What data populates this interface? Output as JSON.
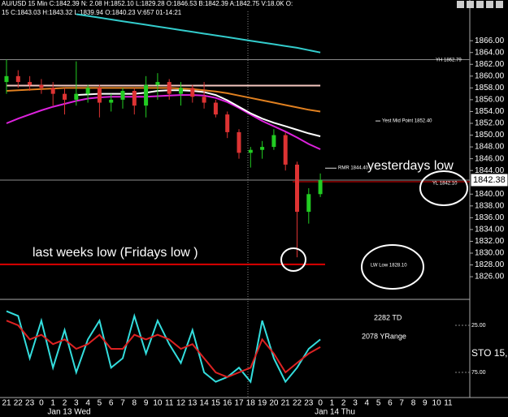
{
  "chart_data": [
    {
      "type": "candlestick",
      "title": "AU/USD 15 Min C:1842.39 N: 2.08 H:1852.10 L:1829.28 O:1846.53 B:1842.39 A:1842.75 V:18.0K O:",
      "subtitle": "15 C:1843.03 H:1843.32 L:1839.94 O:1840.23 V:657 01-14:21",
      "categories": [
        "21",
        "22",
        "23",
        "0",
        "1",
        "2",
        "3",
        "4",
        "5",
        "6",
        "7",
        "8",
        "9",
        "10",
        "11",
        "12",
        "13",
        "14",
        "15",
        "16",
        "17",
        "18",
        "19",
        "20",
        "21",
        "22",
        "23",
        "0",
        "1",
        "2",
        "3",
        "4",
        "5",
        "6",
        "7",
        "8",
        "9",
        "10",
        "11"
      ],
      "date_labels": [
        "Jan 13 Wed",
        "Jan 14 Thu"
      ],
      "open": [
        1859,
        1860,
        1859,
        1858.5,
        1858,
        1857,
        1856,
        1857,
        1858,
        1855.5,
        1856,
        1857.5,
        1855,
        1858.5,
        1859,
        1857,
        1858,
        1856.5,
        1855.5,
        1853.5,
        1850.5,
        1847,
        1847.5,
        1848,
        1850,
        1845,
        1837,
        1840,
        null,
        null,
        null,
        null,
        null,
        null,
        null,
        null,
        null,
        null,
        null
      ],
      "high": [
        1862.8,
        1861,
        1860,
        1859.5,
        1859,
        1858,
        1862.5,
        1858.5,
        1858.5,
        1857,
        1858,
        1858,
        1860,
        1860.5,
        1859.5,
        1859,
        1858.5,
        1859,
        1856,
        1854,
        1851,
        1848,
        1849,
        1851,
        1850.5,
        1845.5,
        1841,
        1843.5,
        null,
        null,
        null,
        null,
        null,
        null,
        null,
        null,
        null,
        null,
        null
      ],
      "low": [
        1857,
        1858,
        1857.5,
        1857,
        1855,
        1853.5,
        1855,
        1855.5,
        1853,
        1854,
        1854.5,
        1853.5,
        1853,
        1856,
        1856,
        1855,
        1855.5,
        1854.5,
        1853,
        1849.5,
        1846,
        1844.5,
        1846,
        1847.5,
        1844,
        1829.3,
        1835,
        1839.5,
        null,
        null,
        null,
        null,
        null,
        null,
        null,
        null,
        null,
        null,
        null
      ],
      "close": [
        1860,
        1859,
        1858.5,
        1858,
        1857,
        1856,
        1857,
        1858,
        1855.5,
        1856,
        1857.5,
        1855,
        1858.5,
        1859,
        1857,
        1858,
        1856.5,
        1855.5,
        1853.5,
        1850.5,
        1847,
        1847.5,
        1848,
        1850,
        1845,
        1837,
        1840,
        1842.39,
        null,
        null,
        null,
        null,
        null,
        null,
        null,
        null,
        null,
        null,
        null
      ],
      "up_color": "#22cc22",
      "down_color": "#dd3333",
      "series": [
        {
          "color": "#33cccc",
          "values": [
            null,
            null,
            null,
            null,
            null,
            null,
            1870.5,
            1870.2,
            1869.9,
            1869.6,
            1869.3,
            1869.0,
            1868.7,
            1868.4,
            1868.1,
            1867.8,
            1867.5,
            1867.2,
            1866.9,
            1866.6,
            1866.3,
            1866.0,
            1865.7,
            1865.4,
            1865.1,
            1864.8,
            1864.4,
            1864.0,
            null,
            null,
            null,
            null,
            null,
            null,
            null,
            null,
            null,
            null,
            null
          ]
        },
        {
          "color": "#f4c8c0",
          "values": [
            1858.4,
            1858.4,
            1858.4,
            1858.4,
            1858.4,
            1858.4,
            1858.4,
            1858.4,
            1858.4,
            1858.4,
            1858.4,
            1858.4,
            1858.4,
            1858.4,
            1858.4,
            1858.4,
            1858.4,
            1858.4,
            1858.4,
            1858.4,
            1858.4,
            1858.4,
            1858.4,
            1858.4,
            1858.4,
            1858.4,
            1858.4,
            1858.4,
            null,
            null,
            null,
            null,
            null,
            null,
            null,
            null,
            null,
            null,
            null
          ]
        },
        {
          "color": "#e08020",
          "values": [
            1857.5,
            1857.6,
            1857.7,
            1857.8,
            1857.9,
            1858,
            1858,
            1858,
            1858,
            1858,
            1858,
            1858,
            1858,
            1858,
            1858,
            1857.9,
            1857.8,
            1857.6,
            1857.4,
            1857.1,
            1856.7,
            1856.3,
            1855.9,
            1855.5,
            1855.1,
            1854.7,
            1854.3,
            1854,
            null,
            null,
            null,
            null,
            null,
            null,
            null,
            null,
            null,
            null,
            null
          ]
        },
        {
          "color": "#dd22dd",
          "values": [
            1852,
            1852.8,
            1853.5,
            1854.2,
            1854.8,
            1855.3,
            1855.8,
            1856.2,
            1856.4,
            1856.5,
            1856.5,
            1856.5,
            1856.5,
            1856.6,
            1856.7,
            1856.8,
            1856.8,
            1856.7,
            1856.3,
            1855.6,
            1854.6,
            1853.5,
            1852.4,
            1851.5,
            1850.6,
            1849.6,
            1848.5,
            1847.6,
            null,
            null,
            null,
            null,
            null,
            null,
            null,
            null,
            null,
            null,
            null
          ]
        },
        {
          "color": "#ffffff",
          "values": [
            null,
            null,
            null,
            null,
            null,
            null,
            1856.8,
            1856.9,
            1857,
            1857,
            1857,
            1857,
            1857.2,
            1857.5,
            1857.6,
            1857.6,
            1857.5,
            1857.3,
            1856.8,
            1855.9,
            1854.8,
            1853.7,
            1852.8,
            1852.1,
            1851.5,
            1850.9,
            1850.3,
            1849.8,
            null,
            null,
            null,
            null,
            null,
            null,
            null,
            null,
            null,
            null,
            null
          ]
        }
      ],
      "levels": [
        {
          "label": "YH 1862.79",
          "value": 1862.79,
          "color": "#888888"
        },
        {
          "label": "LW Low 1828.10",
          "value": 1828.1,
          "color": "#dd0000"
        },
        {
          "label": "YL 1842.10",
          "value": 1842.1,
          "color": "#dd0000"
        },
        {
          "label": "RMR 1844.40",
          "value": 1844.4,
          "color": "#dddddd"
        },
        {
          "label": "Yest Mid Point 1852.40",
          "value": 1852.4,
          "color": "#dddddd"
        }
      ],
      "last_price": 1842.38,
      "annotations": [
        "yesterdays low",
        "last weeks low (Fridays low )"
      ],
      "ylim": [
        1822.3,
        1872.9
      ],
      "yticks": [
        {
          "value": 1826,
          "label": "1826.00"
        },
        {
          "value": 1828,
          "label": "1828.00"
        },
        {
          "value": 1830,
          "label": "1830.00"
        },
        {
          "value": 1832,
          "label": "1832.00"
        },
        {
          "value": 1834,
          "label": "1834.00"
        },
        {
          "value": 1836,
          "label": "1836.00"
        },
        {
          "value": 1838,
          "label": "1838.00"
        },
        {
          "value": 1840,
          "label": "1840.00"
        },
        {
          "value": 1842,
          "label": "1842.00"
        },
        {
          "value": 1844,
          "label": "1844.00"
        },
        {
          "value": 1846,
          "label": "1846.00"
        },
        {
          "value": 1848,
          "label": "1848.00"
        },
        {
          "value": 1850,
          "label": "1850.00"
        },
        {
          "value": 1852,
          "label": "1852.00"
        },
        {
          "value": 1854,
          "label": "1854.00"
        },
        {
          "value": 1856,
          "label": "1856.00"
        },
        {
          "value": 1858,
          "label": "1858.00"
        },
        {
          "value": 1860,
          "label": "1860.00"
        },
        {
          "value": 1862,
          "label": "1862.00"
        },
        {
          "value": 1864,
          "label": "1864.00"
        },
        {
          "value": 1866,
          "label": "1866.00"
        }
      ]
    },
    {
      "type": "line",
      "texts": [
        "2282 TD",
        "2078 YRange",
        "STO 15,"
      ],
      "text_colors": [
        "#ff8844",
        "#ffffff",
        "#ffffff"
      ],
      "series": [
        {
          "color": "#33dddd",
          "values": [
            10,
            15,
            60,
            20,
            70,
            30,
            75,
            40,
            20,
            70,
            60,
            15,
            55,
            20,
            45,
            65,
            30,
            75,
            85,
            80,
            70,
            85,
            20,
            60,
            85,
            70,
            50,
            40,
            null,
            null,
            null,
            null,
            null,
            null,
            null,
            null,
            null,
            null,
            null
          ]
        },
        {
          "color": "#dd2222",
          "values": [
            20,
            25,
            40,
            35,
            45,
            40,
            50,
            45,
            35,
            50,
            50,
            35,
            40,
            35,
            40,
            50,
            45,
            60,
            75,
            80,
            75,
            70,
            40,
            55,
            75,
            65,
            55,
            48,
            null,
            null,
            null,
            null,
            null,
            null,
            null,
            null,
            null,
            null,
            null
          ]
        }
      ],
      "ylim": [
        0,
        100
      ],
      "y_inverted": true,
      "yticks": [
        {
          "value": 25,
          "label": "25.00"
        },
        {
          "value": 75,
          "label": "75.00"
        }
      ]
    }
  ]
}
